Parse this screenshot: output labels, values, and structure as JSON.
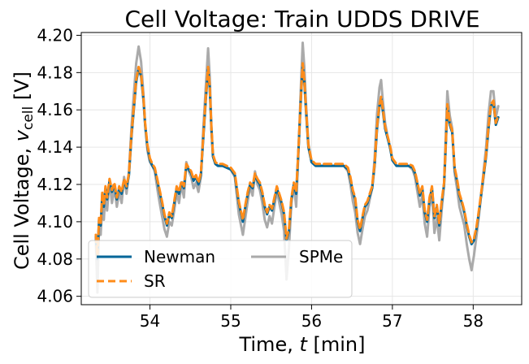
{
  "chart_data": {
    "type": "line",
    "title": "Cell Voltage: Train UDDS DRIVE",
    "xlabel_main": "Time, ",
    "xlabel_var": "t",
    "xlabel_unit": " [min]",
    "ylabel_main": "Cell Voltage, ",
    "ylabel_var": "v",
    "ylabel_sub": "cell",
    "ylabel_unit": " [V]",
    "xlim": [
      53.15,
      58.6
    ],
    "ylim": [
      4.0555,
      4.2015
    ],
    "xticks": [
      54,
      55,
      56,
      57,
      58
    ],
    "yticks": [
      4.06,
      4.08,
      4.1,
      4.12,
      4.14,
      4.16,
      4.18,
      4.2
    ],
    "grid": true,
    "legend_position": "lower-left",
    "colors": {
      "Newman": "#006699",
      "SR": "#ff8c1a",
      "SPMe": "#aaaaaa"
    },
    "series": [
      {
        "name": "Newman",
        "x": [
          53.33,
          53.35,
          53.37,
          53.39,
          53.41,
          53.43,
          53.45,
          53.47,
          53.5,
          53.53,
          53.56,
          53.59,
          53.62,
          53.65,
          53.68,
          53.71,
          53.74,
          53.77,
          53.8,
          53.83,
          53.86,
          53.89,
          53.92,
          53.94,
          53.97,
          54.0,
          54.03,
          54.06,
          54.09,
          54.12,
          54.15,
          54.18,
          54.21,
          54.24,
          54.27,
          54.3,
          54.33,
          54.36,
          54.39,
          54.42,
          54.45,
          54.48,
          54.51,
          54.54,
          54.57,
          54.6,
          54.63,
          54.66,
          54.69,
          54.72,
          54.74,
          54.76,
          54.78,
          54.81,
          54.84,
          54.87,
          54.9,
          54.95,
          55.0,
          55.05,
          55.1,
          55.15,
          55.18,
          55.21,
          55.24,
          55.27,
          55.3,
          55.33,
          55.36,
          55.39,
          55.42,
          55.45,
          55.48,
          55.51,
          55.54,
          55.57,
          55.6,
          55.63,
          55.66,
          55.69,
          55.72,
          55.75,
          55.78,
          55.81,
          55.84,
          55.87,
          55.89,
          55.91,
          55.93,
          55.96,
          56.0,
          56.05,
          56.1,
          56.2,
          56.3,
          56.4,
          56.45,
          56.48,
          56.51,
          56.54,
          56.57,
          56.6,
          56.63,
          56.66,
          56.69,
          56.72,
          56.75,
          56.78,
          56.81,
          56.84,
          56.86,
          56.88,
          56.91,
          56.94,
          56.97,
          57.0,
          57.05,
          57.1,
          57.15,
          57.2,
          57.25,
          57.28,
          57.31,
          57.34,
          57.37,
          57.4,
          57.43,
          57.46,
          57.49,
          57.52,
          57.55,
          57.58,
          57.61,
          57.64,
          57.66,
          57.68,
          57.71,
          57.74,
          57.77,
          57.8,
          57.83,
          57.86,
          57.89,
          57.92,
          57.95,
          57.98,
          58.01,
          58.04,
          58.07,
          58.1,
          58.13,
          58.16,
          58.19,
          58.22,
          58.25,
          58.28,
          58.31
        ],
        "y": [
          4.092,
          4.08,
          4.101,
          4.098,
          4.115,
          4.108,
          4.118,
          4.112,
          4.122,
          4.116,
          4.12,
          4.112,
          4.118,
          4.115,
          4.122,
          4.118,
          4.125,
          4.145,
          4.16,
          4.175,
          4.182,
          4.178,
          4.165,
          4.152,
          4.14,
          4.133,
          4.13,
          4.128,
          4.122,
          4.116,
          4.11,
          4.103,
          4.098,
          4.104,
          4.102,
          4.11,
          4.118,
          4.115,
          4.121,
          4.118,
          4.13,
          4.128,
          4.126,
          4.122,
          4.124,
          4.12,
          4.125,
          4.145,
          4.165,
          4.182,
          4.172,
          4.15,
          4.135,
          4.131,
          4.13,
          4.13,
          4.13,
          4.129,
          4.128,
          4.125,
          4.11,
          4.1,
          4.108,
          4.115,
          4.12,
          4.118,
          4.125,
          4.122,
          4.12,
          4.115,
          4.108,
          4.104,
          4.108,
          4.106,
          4.112,
          4.118,
          4.114,
          4.11,
          4.104,
          4.09,
          4.095,
          4.112,
          4.12,
          4.115,
          4.14,
          4.168,
          4.184,
          4.175,
          4.16,
          4.14,
          4.132,
          4.13,
          4.13,
          4.13,
          4.13,
          4.13,
          4.128,
          4.123,
          4.116,
          4.112,
          4.1,
          4.095,
          4.102,
          4.108,
          4.11,
          4.114,
          4.118,
          4.13,
          4.15,
          4.162,
          4.166,
          4.16,
          4.15,
          4.145,
          4.14,
          4.133,
          4.13,
          4.13,
          4.13,
          4.13,
          4.129,
          4.126,
          4.12,
          4.114,
          4.118,
          4.105,
          4.1,
          4.112,
          4.118,
          4.102,
          4.108,
          4.098,
          4.11,
          4.12,
          4.14,
          4.162,
          4.152,
          4.148,
          4.128,
          4.122,
          4.114,
          4.11,
          4.105,
          4.098,
          4.092,
          4.088,
          4.09,
          4.096,
          4.105,
          4.115,
          4.125,
          4.135,
          4.15,
          4.162,
          4.164,
          4.152,
          4.156
        ]
      },
      {
        "name": "SR",
        "x": [
          53.33,
          53.35,
          53.37,
          53.39,
          53.41,
          53.43,
          53.45,
          53.47,
          53.5,
          53.53,
          53.56,
          53.59,
          53.62,
          53.65,
          53.68,
          53.71,
          53.74,
          53.77,
          53.8,
          53.83,
          53.86,
          53.89,
          53.92,
          53.94,
          53.97,
          54.0,
          54.03,
          54.06,
          54.09,
          54.12,
          54.15,
          54.18,
          54.21,
          54.24,
          54.27,
          54.3,
          54.33,
          54.36,
          54.39,
          54.42,
          54.45,
          54.48,
          54.51,
          54.54,
          54.57,
          54.6,
          54.63,
          54.66,
          54.69,
          54.72,
          54.74,
          54.76,
          54.78,
          54.81,
          54.84,
          54.87,
          54.9,
          54.95,
          55.0,
          55.05,
          55.1,
          55.15,
          55.18,
          55.21,
          55.24,
          55.27,
          55.3,
          55.33,
          55.36,
          55.39,
          55.42,
          55.45,
          55.48,
          55.51,
          55.54,
          55.57,
          55.6,
          55.63,
          55.66,
          55.69,
          55.72,
          55.75,
          55.78,
          55.81,
          55.84,
          55.87,
          55.89,
          55.91,
          55.93,
          55.96,
          56.0,
          56.05,
          56.1,
          56.2,
          56.3,
          56.4,
          56.45,
          56.48,
          56.51,
          56.54,
          56.57,
          56.6,
          56.63,
          56.66,
          56.69,
          56.72,
          56.75,
          56.78,
          56.81,
          56.84,
          56.86,
          56.88,
          56.91,
          56.94,
          56.97,
          57.0,
          57.05,
          57.1,
          57.15,
          57.2,
          57.25,
          57.28,
          57.31,
          57.34,
          57.37,
          57.4,
          57.43,
          57.46,
          57.49,
          57.52,
          57.55,
          57.58,
          57.61,
          57.64,
          57.66,
          57.68,
          57.71,
          57.74,
          57.77,
          57.8,
          57.83,
          57.86,
          57.89,
          57.92,
          57.95,
          57.98,
          58.01,
          58.04,
          58.07,
          58.1,
          58.13,
          58.16,
          58.19,
          58.22,
          58.25,
          58.28,
          58.31
        ],
        "y": [
          4.093,
          4.081,
          4.102,
          4.099,
          4.116,
          4.109,
          4.119,
          4.113,
          4.123,
          4.117,
          4.121,
          4.113,
          4.119,
          4.116,
          4.123,
          4.119,
          4.126,
          4.146,
          4.161,
          4.176,
          4.183,
          4.179,
          4.166,
          4.153,
          4.141,
          4.134,
          4.131,
          4.129,
          4.123,
          4.117,
          4.111,
          4.104,
          4.099,
          4.105,
          4.103,
          4.111,
          4.119,
          4.116,
          4.122,
          4.119,
          4.131,
          4.129,
          4.127,
          4.123,
          4.125,
          4.121,
          4.126,
          4.146,
          4.166,
          4.183,
          4.173,
          4.151,
          4.136,
          4.132,
          4.131,
          4.131,
          4.131,
          4.13,
          4.129,
          4.126,
          4.111,
          4.101,
          4.109,
          4.116,
          4.121,
          4.119,
          4.126,
          4.123,
          4.121,
          4.116,
          4.109,
          4.105,
          4.109,
          4.107,
          4.113,
          4.119,
          4.115,
          4.111,
          4.105,
          4.091,
          4.096,
          4.113,
          4.121,
          4.116,
          4.141,
          4.169,
          4.185,
          4.176,
          4.161,
          4.141,
          4.133,
          4.131,
          4.131,
          4.131,
          4.131,
          4.131,
          4.129,
          4.124,
          4.117,
          4.113,
          4.101,
          4.096,
          4.103,
          4.109,
          4.111,
          4.115,
          4.119,
          4.131,
          4.151,
          4.163,
          4.167,
          4.161,
          4.151,
          4.146,
          4.141,
          4.134,
          4.131,
          4.131,
          4.131,
          4.131,
          4.13,
          4.127,
          4.121,
          4.115,
          4.119,
          4.106,
          4.101,
          4.113,
          4.119,
          4.103,
          4.109,
          4.099,
          4.111,
          4.121,
          4.141,
          4.163,
          4.153,
          4.149,
          4.129,
          4.123,
          4.115,
          4.111,
          4.106,
          4.099,
          4.093,
          4.089,
          4.091,
          4.097,
          4.106,
          4.116,
          4.126,
          4.136,
          4.151,
          4.163,
          4.165,
          4.153,
          4.157
        ]
      },
      {
        "name": "SPMe",
        "x": [
          53.33,
          53.35,
          53.37,
          53.39,
          53.41,
          53.43,
          53.45,
          53.47,
          53.5,
          53.53,
          53.56,
          53.59,
          53.62,
          53.65,
          53.68,
          53.71,
          53.74,
          53.77,
          53.8,
          53.83,
          53.86,
          53.89,
          53.92,
          53.94,
          53.97,
          54.0,
          54.03,
          54.06,
          54.09,
          54.12,
          54.15,
          54.18,
          54.21,
          54.24,
          54.27,
          54.3,
          54.33,
          54.36,
          54.39,
          54.42,
          54.45,
          54.48,
          54.51,
          54.54,
          54.57,
          54.6,
          54.63,
          54.66,
          54.69,
          54.72,
          54.74,
          54.76,
          54.78,
          54.81,
          54.84,
          54.87,
          54.9,
          54.95,
          55.0,
          55.05,
          55.1,
          55.15,
          55.18,
          55.21,
          55.24,
          55.27,
          55.3,
          55.33,
          55.36,
          55.39,
          55.42,
          55.45,
          55.48,
          55.51,
          55.54,
          55.57,
          55.6,
          55.63,
          55.66,
          55.69,
          55.72,
          55.75,
          55.78,
          55.81,
          55.84,
          55.87,
          55.89,
          55.91,
          55.93,
          55.96,
          56.0,
          56.05,
          56.1,
          56.2,
          56.3,
          56.4,
          56.45,
          56.48,
          56.51,
          56.54,
          56.57,
          56.6,
          56.63,
          56.66,
          56.69,
          56.72,
          56.75,
          56.78,
          56.81,
          56.84,
          56.86,
          56.88,
          56.91,
          56.94,
          56.97,
          57.0,
          57.05,
          57.1,
          57.15,
          57.2,
          57.25,
          57.28,
          57.31,
          57.34,
          57.37,
          57.4,
          57.43,
          57.46,
          57.49,
          57.52,
          57.55,
          57.58,
          57.61,
          57.64,
          57.66,
          57.68,
          57.71,
          57.74,
          57.77,
          57.8,
          57.83,
          57.86,
          57.89,
          57.92,
          57.95,
          57.98,
          58.01,
          58.04,
          58.07,
          58.1,
          58.13,
          58.16,
          58.19,
          58.22,
          58.25,
          58.28,
          58.31
        ],
        "y": [
          4.09,
          4.062,
          4.098,
          4.093,
          4.11,
          4.101,
          4.116,
          4.106,
          4.122,
          4.11,
          4.118,
          4.108,
          4.116,
          4.11,
          4.124,
          4.115,
          4.127,
          4.15,
          4.168,
          4.185,
          4.194,
          4.186,
          4.168,
          4.152,
          4.138,
          4.132,
          4.13,
          4.127,
          4.118,
          4.11,
          4.103,
          4.096,
          4.092,
          4.1,
          4.098,
          4.106,
          4.116,
          4.11,
          4.12,
          4.113,
          4.132,
          4.127,
          4.124,
          4.118,
          4.121,
          4.116,
          4.124,
          4.15,
          4.172,
          4.193,
          4.178,
          4.152,
          4.135,
          4.131,
          4.13,
          4.13,
          4.13,
          4.129,
          4.128,
          4.124,
          4.104,
          4.093,
          4.102,
          4.111,
          4.119,
          4.114,
          4.127,
          4.12,
          4.117,
          4.11,
          4.101,
          4.097,
          4.103,
          4.099,
          4.108,
          4.117,
          4.11,
          4.104,
          4.095,
          4.069,
          4.086,
          4.11,
          4.12,
          4.108,
          4.14,
          4.175,
          4.196,
          4.183,
          4.164,
          4.142,
          4.132,
          4.13,
          4.13,
          4.13,
          4.13,
          4.13,
          4.127,
          4.12,
          4.111,
          4.105,
          4.094,
          4.088,
          4.096,
          4.103,
          4.106,
          4.112,
          4.118,
          4.134,
          4.158,
          4.172,
          4.176,
          4.166,
          4.153,
          4.146,
          4.14,
          4.133,
          4.13,
          4.13,
          4.13,
          4.13,
          4.128,
          4.124,
          4.116,
          4.108,
          4.114,
          4.099,
          4.092,
          4.108,
          4.116,
          4.094,
          4.102,
          4.09,
          4.106,
          4.12,
          4.145,
          4.17,
          4.157,
          4.15,
          4.126,
          4.118,
          4.108,
          4.103,
          4.098,
          4.088,
          4.08,
          4.074,
          4.082,
          4.092,
          4.103,
          4.115,
          4.128,
          4.14,
          4.158,
          4.17,
          4.17,
          4.156,
          4.162
        ]
      }
    ],
    "legend_entries": [
      {
        "name": "Newman",
        "style": "solid"
      },
      {
        "name": "SR",
        "style": "dashed"
      },
      {
        "name": "SPMe",
        "style": "solid"
      }
    ]
  }
}
